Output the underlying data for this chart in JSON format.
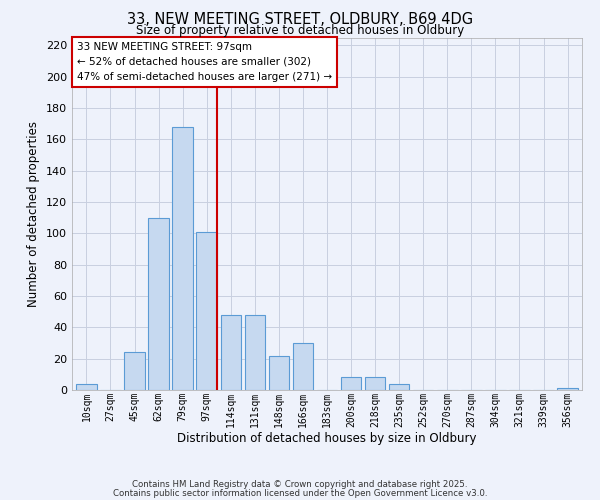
{
  "title1": "33, NEW MEETING STREET, OLDBURY, B69 4DG",
  "title2": "Size of property relative to detached houses in Oldbury",
  "xlabel": "Distribution of detached houses by size in Oldbury",
  "ylabel": "Number of detached properties",
  "bar_labels": [
    "10sqm",
    "27sqm",
    "45sqm",
    "62sqm",
    "79sqm",
    "97sqm",
    "114sqm",
    "131sqm",
    "148sqm",
    "166sqm",
    "183sqm",
    "200sqm",
    "218sqm",
    "235sqm",
    "252sqm",
    "270sqm",
    "287sqm",
    "304sqm",
    "321sqm",
    "339sqm",
    "356sqm"
  ],
  "bar_values": [
    4,
    0,
    24,
    110,
    168,
    101,
    48,
    48,
    22,
    30,
    0,
    8,
    8,
    4,
    0,
    0,
    0,
    0,
    0,
    0,
    1
  ],
  "bar_color": "#c6d9f0",
  "bar_edge_color": "#5b9bd5",
  "vline_color": "#cc0000",
  "ylim": [
    0,
    225
  ],
  "yticks": [
    0,
    20,
    40,
    60,
    80,
    100,
    120,
    140,
    160,
    180,
    200,
    220
  ],
  "annotation_title": "33 NEW MEETING STREET: 97sqm",
  "annotation_line1": "← 52% of detached houses are smaller (302)",
  "annotation_line2": "47% of semi-detached houses are larger (271) →",
  "annotation_box_color": "#cc0000",
  "footer1": "Contains HM Land Registry data © Crown copyright and database right 2025.",
  "footer2": "Contains public sector information licensed under the Open Government Licence v3.0.",
  "bg_color": "#eef2fb",
  "grid_color": "#c8cfe0"
}
